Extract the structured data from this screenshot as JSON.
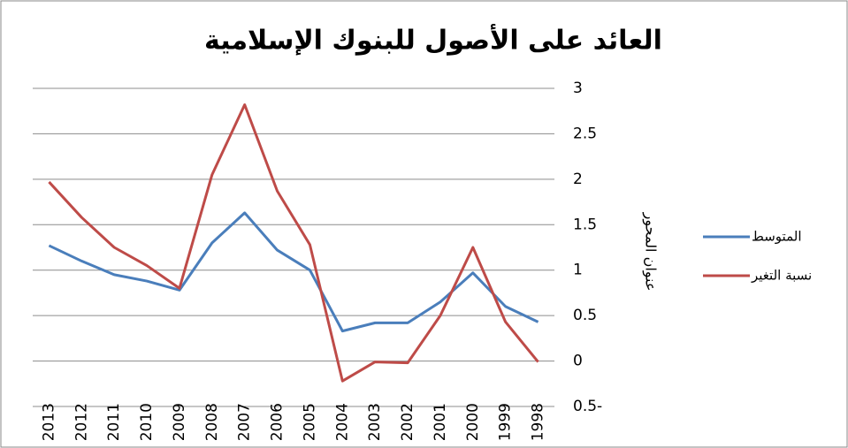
{
  "chart_data": {
    "type": "line",
    "title": "العائد على الأصول للبنوك الإسلامية",
    "y_axis_label": "عنوان المحور",
    "categories": [
      "2013",
      "2012",
      "2011",
      "2010",
      "2009",
      "2008",
      "2007",
      "2006",
      "2005",
      "2004",
      "2003",
      "2002",
      "2001",
      "2000",
      "1999",
      "1998"
    ],
    "series": [
      {
        "name": "المتوسط",
        "color": "#4a7ebb",
        "values": [
          1.27,
          1.1,
          0.95,
          0.88,
          0.78,
          1.3,
          1.63,
          1.22,
          1.0,
          0.33,
          0.42,
          0.42,
          0.65,
          0.97,
          0.6,
          0.43
        ]
      },
      {
        "name": "نسبة التغير",
        "color": "#be4b48",
        "values": [
          1.97,
          1.58,
          1.25,
          1.05,
          0.8,
          2.05,
          2.82,
          1.87,
          1.28,
          -0.22,
          -0.01,
          -0.02,
          0.5,
          1.25,
          0.43,
          -0.01
        ]
      }
    ],
    "ylim": [
      -0.5,
      3
    ],
    "yticks": [
      {
        "value": -0.5,
        "label": "0.5-"
      },
      0,
      0.5,
      1,
      1.5,
      2,
      2.5,
      3
    ],
    "grid": true,
    "legend": "right"
  }
}
